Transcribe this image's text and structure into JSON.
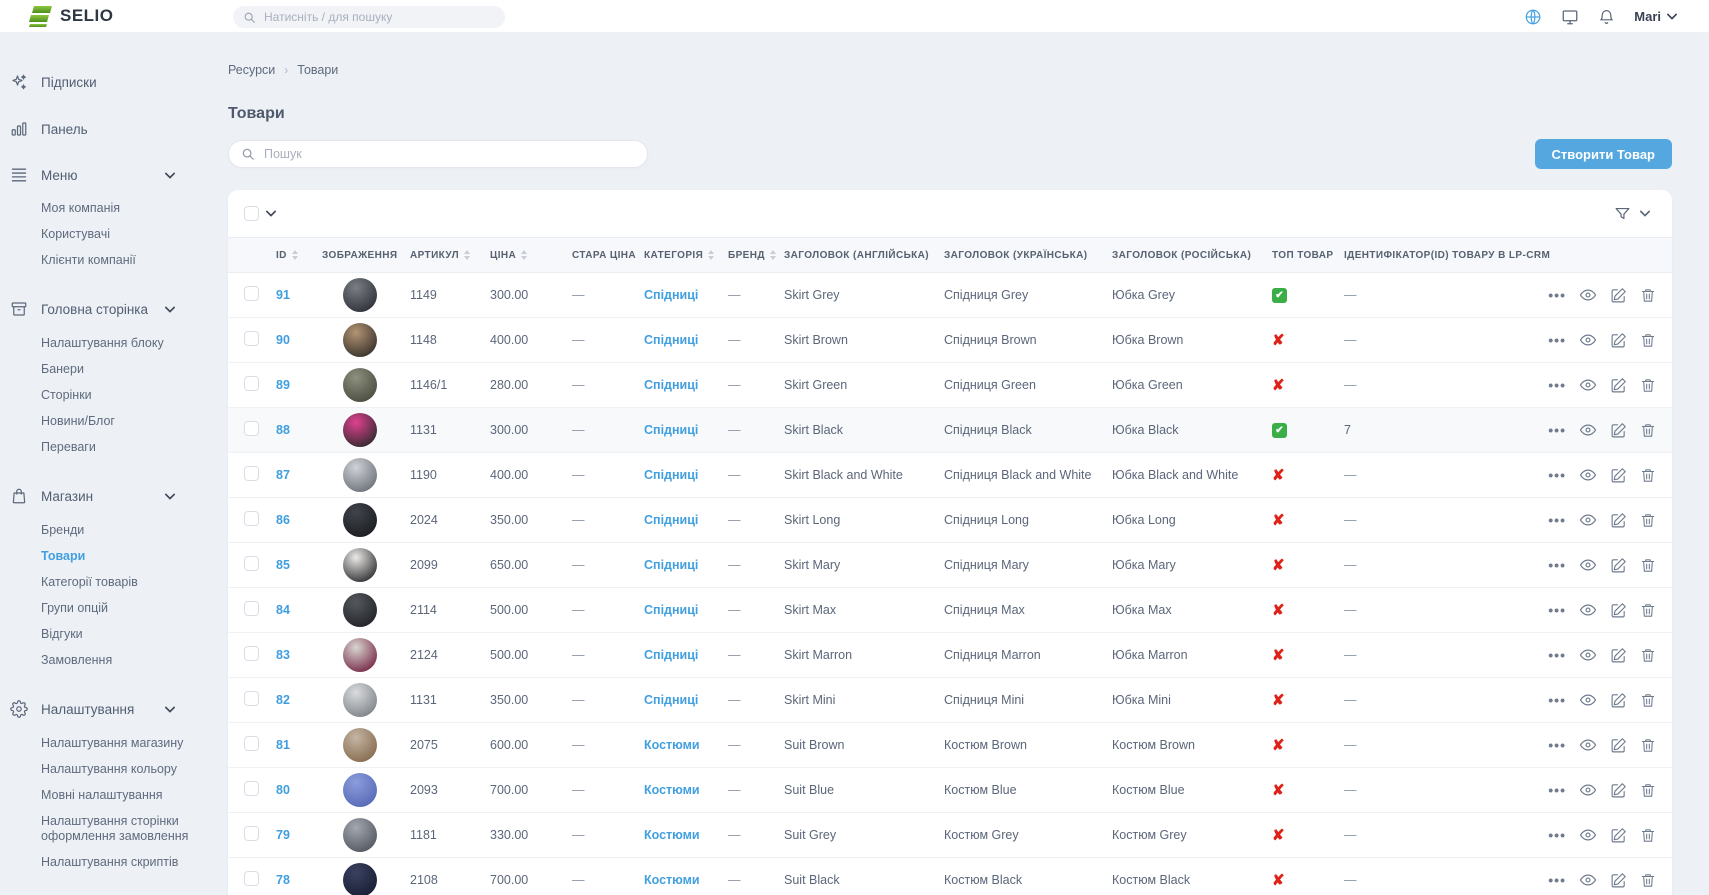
{
  "colors": {
    "accent_blue": "#42a0e0",
    "button_blue": "#55a7e0",
    "top_yes_green": "#3cae47",
    "top_no_red": "#df2218",
    "page_bg": "#edf0f5",
    "logo_green": "#6fb52c"
  },
  "topbar": {
    "logo": "SELIO",
    "search_placeholder": "Натисніть / для пошуку",
    "user": "Mari"
  },
  "sidebar": {
    "sections": [
      {
        "icon": "sparkles-icon",
        "label": "Підписки"
      },
      {
        "icon": "bar-chart-icon",
        "label": "Панель"
      },
      {
        "icon": "menu-icon",
        "label": "Меню",
        "expanded": true,
        "children": [
          {
            "label": "Моя компанія"
          },
          {
            "label": "Користувачі"
          },
          {
            "label": "Клієнти компанії"
          }
        ]
      },
      {
        "icon": "archive-box-icon",
        "label": "Головна сторінка",
        "expanded": true,
        "children": [
          {
            "label": "Налаштування блоку"
          },
          {
            "label": "Банери"
          },
          {
            "label": "Сторінки"
          },
          {
            "label": "Новини/Блог"
          },
          {
            "label": "Переваги"
          }
        ]
      },
      {
        "icon": "shopping-bag-icon",
        "label": "Магазин",
        "expanded": true,
        "children": [
          {
            "label": "Бренди"
          },
          {
            "label": "Товари",
            "active": true
          },
          {
            "label": "Категорії товарів"
          },
          {
            "label": "Групи опцій"
          },
          {
            "label": "Відгуки"
          },
          {
            "label": "Замовлення"
          }
        ]
      },
      {
        "icon": "gear-icon",
        "label": "Налаштування",
        "expanded": true,
        "children": [
          {
            "label": "Налаштування магазину"
          },
          {
            "label": "Налаштування кольору"
          },
          {
            "label": "Мовні налаштування"
          },
          {
            "label": "Налаштування сторінки оформлення замовлення"
          },
          {
            "label": "Налаштування скриптів"
          }
        ]
      }
    ]
  },
  "breadcrumb": {
    "items": [
      "Ресурси",
      "Товари"
    ]
  },
  "page": {
    "title": "Товари",
    "search_placeholder": "Пошук",
    "create_button": "Створити Товар"
  },
  "table": {
    "headers": [
      {
        "label": "ID",
        "sortable": true
      },
      {
        "label": "ЗОБРАЖЕННЯ",
        "sortable": false
      },
      {
        "label": "АРТИКУЛ",
        "sortable": true
      },
      {
        "label": "ЦІНА",
        "sortable": true
      },
      {
        "label": "СТАРА ЦІНА",
        "sortable": false
      },
      {
        "label": "КАТЕГОРІЯ",
        "sortable": true
      },
      {
        "label": "БРЕНД",
        "sortable": true
      },
      {
        "label": "ЗАГОЛОВОК (АНГЛІЙСЬКА)",
        "sortable": false
      },
      {
        "label": "ЗАГОЛОВОК (УКРАЇНСЬКА)",
        "sortable": false
      },
      {
        "label": "ЗАГОЛОВОК (РОСІЙСЬКА)",
        "sortable": false
      },
      {
        "label": "ТОП ТОВАР",
        "sortable": false
      },
      {
        "label": "ІДЕНТИФІКАТОР(ID) ТОВАРУ В LP-CRM",
        "sortable": false
      }
    ],
    "rows": [
      {
        "id": "91",
        "article": "1149",
        "price": "300.00",
        "old_price": "—",
        "category": "Спідниці",
        "brand": "—",
        "title_en": "Skirt Grey",
        "title_uk": "Спідниця Grey",
        "title_ru": "Юбка Grey",
        "top": true,
        "lp_crm": "—",
        "highlighted": false,
        "avatar": [
          "#7a7e85",
          "#33363c"
        ]
      },
      {
        "id": "90",
        "article": "1148",
        "price": "400.00",
        "old_price": "—",
        "category": "Спідниці",
        "brand": "—",
        "title_en": "Skirt Brown",
        "title_uk": "Спідниця Brown",
        "title_ru": "Юбка Brown",
        "top": false,
        "lp_crm": "—",
        "highlighted": false,
        "avatar": [
          "#b39473",
          "#3f3730"
        ]
      },
      {
        "id": "89",
        "article": "1146/1",
        "price": "280.00",
        "old_price": "—",
        "category": "Спідниці",
        "brand": "—",
        "title_en": "Skirt Green",
        "title_uk": "Спідниця Green",
        "title_ru": "Юбка Green",
        "top": false,
        "lp_crm": "—",
        "highlighted": false,
        "avatar": [
          "#8d907c",
          "#4d5044"
        ]
      },
      {
        "id": "88",
        "article": "1131",
        "price": "300.00",
        "old_price": "—",
        "category": "Спідниці",
        "brand": "—",
        "title_en": "Skirt Black",
        "title_uk": "Спідниця Black",
        "title_ru": "Юбка Black",
        "top": true,
        "lp_crm": "7",
        "highlighted": true,
        "avatar": [
          "#e0418f",
          "#3c2b35"
        ]
      },
      {
        "id": "87",
        "article": "1190",
        "price": "400.00",
        "old_price": "—",
        "category": "Спідниці",
        "brand": "—",
        "title_en": "Skirt Black and White",
        "title_uk": "Спідниця Black and White",
        "title_ru": "Юбка Black and White",
        "top": false,
        "lp_crm": "—",
        "highlighted": false,
        "avatar": [
          "#cfd2d7",
          "#73787f"
        ]
      },
      {
        "id": "86",
        "article": "2024",
        "price": "350.00",
        "old_price": "—",
        "category": "Спідниці",
        "brand": "—",
        "title_en": "Skirt Long",
        "title_uk": "Спідниця Long",
        "title_ru": "Юбка Long",
        "top": false,
        "lp_crm": "—",
        "highlighted": false,
        "avatar": [
          "#41444b",
          "#1d1f23"
        ]
      },
      {
        "id": "85",
        "article": "2099",
        "price": "650.00",
        "old_price": "—",
        "category": "Спідниці",
        "brand": "—",
        "title_en": "Skirt Mary",
        "title_uk": "Спідниця Mary",
        "title_ru": "Юбка Mary",
        "top": false,
        "lp_crm": "—",
        "highlighted": false,
        "avatar": [
          "#eceae6",
          "#3b3b3e"
        ]
      },
      {
        "id": "84",
        "article": "2114",
        "price": "500.00",
        "old_price": "—",
        "category": "Спідниці",
        "brand": "—",
        "title_en": "Skirt Max",
        "title_uk": "Спідниця Max",
        "title_ru": "Юбка Max",
        "top": false,
        "lp_crm": "—",
        "highlighted": false,
        "avatar": [
          "#55585e",
          "#24262a"
        ]
      },
      {
        "id": "83",
        "article": "2124",
        "price": "500.00",
        "old_price": "—",
        "category": "Спідниці",
        "brand": "—",
        "title_en": "Skirt Marron",
        "title_uk": "Спідниця Marron",
        "title_ru": "Юбка Marron",
        "top": false,
        "lp_crm": "—",
        "highlighted": false,
        "avatar": [
          "#d9d6d1",
          "#7c3350"
        ]
      },
      {
        "id": "82",
        "article": "1131",
        "price": "350.00",
        "old_price": "—",
        "category": "Спідниці",
        "brand": "—",
        "title_en": "Skirt Mini",
        "title_uk": "Спідниця Mini",
        "title_ru": "Юбка Mini",
        "top": false,
        "lp_crm": "—",
        "highlighted": false,
        "avatar": [
          "#dadcde",
          "#84888e"
        ]
      },
      {
        "id": "81",
        "article": "2075",
        "price": "600.00",
        "old_price": "—",
        "category": "Костюми",
        "brand": "—",
        "title_en": "Suit Brown",
        "title_uk": "Костюм Brown",
        "title_ru": "Костюм Brown",
        "top": false,
        "lp_crm": "—",
        "highlighted": false,
        "avatar": [
          "#c4b5a3",
          "#8a6f54"
        ]
      },
      {
        "id": "80",
        "article": "2093",
        "price": "700.00",
        "old_price": "—",
        "category": "Костюми",
        "brand": "—",
        "title_en": "Suit Blue",
        "title_uk": "Костюм Blue",
        "title_ru": "Костюм Blue",
        "top": false,
        "lp_crm": "—",
        "highlighted": false,
        "avatar": [
          "#8c9cdc",
          "#5a6cb8"
        ]
      },
      {
        "id": "79",
        "article": "1181",
        "price": "330.00",
        "old_price": "—",
        "category": "Костюми",
        "brand": "—",
        "title_en": "Suit Grey",
        "title_uk": "Костюм Grey",
        "title_ru": "Костюм Grey",
        "top": false,
        "lp_crm": "—",
        "highlighted": false,
        "avatar": [
          "#a3a8b0",
          "#585d65"
        ]
      },
      {
        "id": "78",
        "article": "2108",
        "price": "700.00",
        "old_price": "—",
        "category": "Костюми",
        "brand": "—",
        "title_en": "Suit Black",
        "title_uk": "Костюм Black",
        "title_ru": "Костюм Black",
        "top": false,
        "lp_crm": "—",
        "highlighted": false,
        "avatar": [
          "#3a4160",
          "#1b2036"
        ]
      }
    ]
  }
}
